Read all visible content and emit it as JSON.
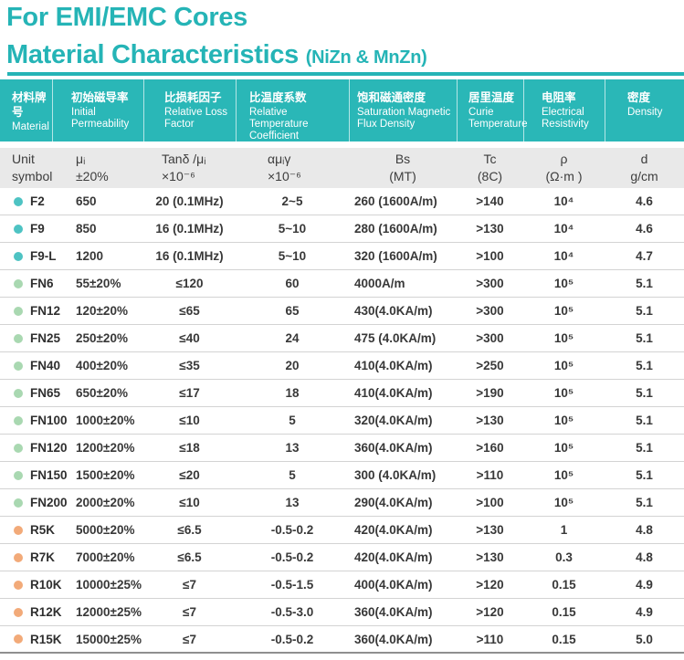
{
  "page": {
    "title_line1": "For EMI/EMC Cores",
    "title_line2": "Material Characteristics",
    "title_line2_suffix": "(NiZn & MnZn)"
  },
  "colors": {
    "teal_accent": "#2ab7b7",
    "unit_row_bg": "#e9e9e9",
    "dots": {
      "teal": "#4ec3c3",
      "green": "#a9d8b1",
      "orange": "#f2aa79"
    }
  },
  "table": {
    "header_columns": [
      {
        "zh": "材料牌号",
        "en": "Material"
      },
      {
        "zh": "初始磁导率",
        "en": "Initial Permeability"
      },
      {
        "zh": "比损耗因子",
        "en": "Relative Loss Factor"
      },
      {
        "zh": "比温度系数",
        "en": "Relative Temperature Coefficient"
      },
      {
        "zh": "饱和磁通密度",
        "en": "Saturation Magnetic Flux Density"
      },
      {
        "zh": "居里温度",
        "en": "Curie Temperature"
      },
      {
        "zh": "电阻率",
        "en": "Electrical Resistivity"
      },
      {
        "zh": "密度",
        "en": "Density"
      }
    ],
    "unit_label_line1": "Unit",
    "unit_label_line2": "symbol",
    "units": [
      {
        "line1": "μᵢ",
        "line2": "±20%"
      },
      {
        "line1": "Tanδ /μᵢ",
        "line2": "×10⁻⁶"
      },
      {
        "line1": "αμᵢγ",
        "line2": "×10⁻⁶"
      },
      {
        "line1": "Bs",
        "line2": "(MT)"
      },
      {
        "line1": "Tc",
        "line2": "(8C)"
      },
      {
        "line1": "ρ",
        "line2": "(Ω·m )"
      },
      {
        "line1": "d",
        "line2": "g/cm"
      }
    ],
    "rows": [
      {
        "material": "F2",
        "dot": "teal",
        "values": [
          "650",
          "20 (0.1MHz)",
          "2~5",
          "260 (1600A/m)",
          ">140",
          "10⁴",
          "4.6"
        ]
      },
      {
        "material": "F9",
        "dot": "teal",
        "values": [
          "850",
          "16 (0.1MHz)",
          "5~10",
          "280 (1600A/m)",
          ">130",
          "10⁴",
          "4.6"
        ]
      },
      {
        "material": "F9-L",
        "dot": "teal",
        "values": [
          "1200",
          "16 (0.1MHz)",
          "5~10",
          "320 (1600A/m)",
          ">100",
          "10⁴",
          "4.7"
        ]
      },
      {
        "material": "FN6",
        "dot": "green",
        "values": [
          "55±20%",
          "≤120",
          "60",
          "4000A/m",
          ">300",
          "10⁵",
          "5.1"
        ]
      },
      {
        "material": "FN12",
        "dot": "green",
        "values": [
          "120±20%",
          "≤65",
          "65",
          "430(4.0KA/m)",
          ">300",
          "10⁵",
          "5.1"
        ]
      },
      {
        "material": "FN25",
        "dot": "green",
        "values": [
          "250±20%",
          "≤40",
          "24",
          "475 (4.0KA/m)",
          ">300",
          "10⁵",
          "5.1"
        ]
      },
      {
        "material": "FN40",
        "dot": "green",
        "values": [
          "400±20%",
          "≤35",
          "20",
          "410(4.0KA/m)",
          ">250",
          "10⁵",
          "5.1"
        ]
      },
      {
        "material": "FN65",
        "dot": "green",
        "values": [
          "650±20%",
          "≤17",
          "18",
          "410(4.0KA/m)",
          ">190",
          "10⁵",
          "5.1"
        ]
      },
      {
        "material": "FN100",
        "dot": "green",
        "values": [
          "1000±20%",
          "≤10",
          "5",
          "320(4.0KA/m)",
          ">130",
          "10⁵",
          "5.1"
        ]
      },
      {
        "material": "FN120",
        "dot": "green",
        "values": [
          "1200±20%",
          "≤18",
          "13",
          "360(4.0KA/m)",
          ">160",
          "10⁵",
          "5.1"
        ]
      },
      {
        "material": "FN150",
        "dot": "green",
        "values": [
          "1500±20%",
          "≤20",
          "5",
          "300 (4.0KA/m)",
          ">110",
          "10⁵",
          "5.1"
        ]
      },
      {
        "material": "FN200",
        "dot": "green",
        "values": [
          "2000±20%",
          "≤10",
          "13",
          "290(4.0KA/m)",
          ">100",
          "10⁵",
          "5.1"
        ]
      },
      {
        "material": "R5K",
        "dot": "orange",
        "values": [
          "5000±20%",
          "≤6.5",
          "-0.5-0.2",
          "420(4.0KA/m)",
          ">130",
          "1",
          "4.8"
        ]
      },
      {
        "material": "R7K",
        "dot": "orange",
        "values": [
          "7000±20%",
          "≤6.5",
          "-0.5-0.2",
          "420(4.0KA/m)",
          ">130",
          "0.3",
          "4.8"
        ]
      },
      {
        "material": "R10K",
        "dot": "orange",
        "values": [
          "10000±25%",
          "≤7",
          "-0.5-1.5",
          "400(4.0KA/m)",
          ">120",
          "0.15",
          "4.9"
        ]
      },
      {
        "material": "R12K",
        "dot": "orange",
        "values": [
          "12000±25%",
          "≤7",
          "-0.5-3.0",
          "360(4.0KA/m)",
          ">120",
          "0.15",
          "4.9"
        ]
      },
      {
        "material": "R15K",
        "dot": "orange",
        "values": [
          "15000±25%",
          "≤7",
          "-0.5-0.2",
          "360(4.0KA/m)",
          ">110",
          "0.15",
          "5.0"
        ]
      }
    ]
  }
}
